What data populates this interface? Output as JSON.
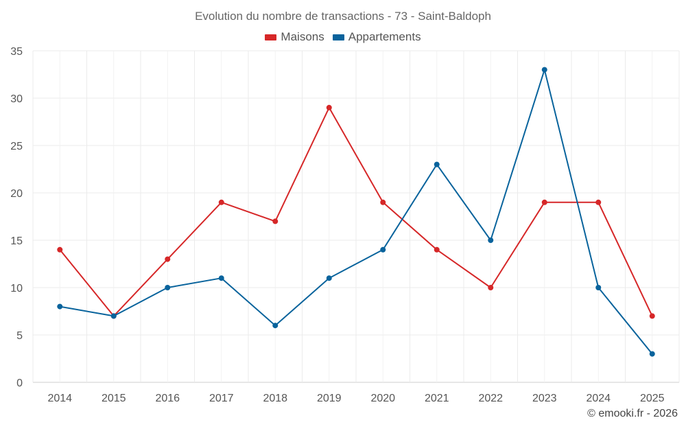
{
  "chart_data": {
    "type": "line",
    "title": "Evolution du nombre de transactions - 73 - Saint-Baldoph",
    "x": [
      "2014",
      "2015",
      "2016",
      "2017",
      "2018",
      "2019",
      "2020",
      "2021",
      "2022",
      "2023",
      "2024",
      "2025"
    ],
    "series": [
      {
        "name": "Maisons",
        "color": "#d62728",
        "values": [
          14,
          7,
          13,
          19,
          17,
          29,
          19,
          14,
          10,
          19,
          19,
          7
        ]
      },
      {
        "name": "Appartements",
        "color": "#08639c",
        "values": [
          8,
          7,
          10,
          11,
          6,
          11,
          14,
          23,
          15,
          33,
          10,
          3
        ]
      }
    ],
    "ylim": [
      0,
      35
    ],
    "yticks": [
      0,
      5,
      10,
      15,
      20,
      25,
      30,
      35
    ],
    "grid": true,
    "legend_position": "top-center"
  },
  "credit": "© emooki.fr - 2026"
}
